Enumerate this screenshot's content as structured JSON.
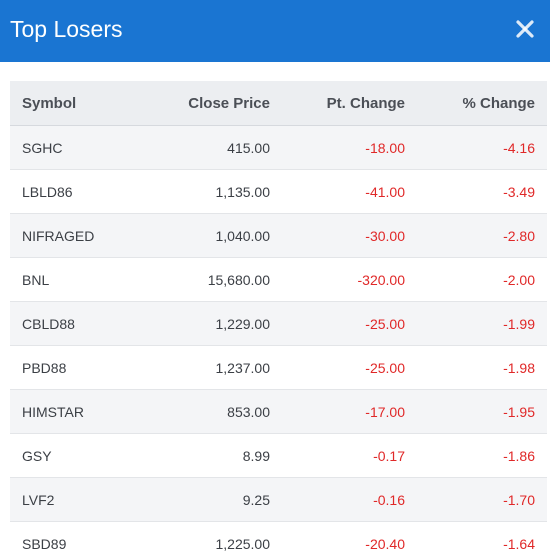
{
  "header": {
    "title": "Top Losers",
    "close_icon": "close-icon",
    "background_color": "#1a75d2"
  },
  "table": {
    "columns": [
      "Symbol",
      "Close Price",
      "Pt. Change",
      "% Change"
    ],
    "negative_color": "#e02828",
    "rows": [
      {
        "symbol": "SGHC",
        "close": "415.00",
        "pt_change": "-18.00",
        "pct_change": "-4.16"
      },
      {
        "symbol": "LBLD86",
        "close": "1,135.00",
        "pt_change": "-41.00",
        "pct_change": "-3.49"
      },
      {
        "symbol": "NIFRAGED",
        "close": "1,040.00",
        "pt_change": "-30.00",
        "pct_change": "-2.80"
      },
      {
        "symbol": "BNL",
        "close": "15,680.00",
        "pt_change": "-320.00",
        "pct_change": "-2.00"
      },
      {
        "symbol": "CBLD88",
        "close": "1,229.00",
        "pt_change": "-25.00",
        "pct_change": "-1.99"
      },
      {
        "symbol": "PBD88",
        "close": "1,237.00",
        "pt_change": "-25.00",
        "pct_change": "-1.98"
      },
      {
        "symbol": "HIMSTAR",
        "close": "853.00",
        "pt_change": "-17.00",
        "pct_change": "-1.95"
      },
      {
        "symbol": "GSY",
        "close": "8.99",
        "pt_change": "-0.17",
        "pct_change": "-1.86"
      },
      {
        "symbol": "LVF2",
        "close": "9.25",
        "pt_change": "-0.16",
        "pct_change": "-1.70"
      },
      {
        "symbol": "SBD89",
        "close": "1,225.00",
        "pt_change": "-20.40",
        "pct_change": "-1.64"
      }
    ]
  }
}
